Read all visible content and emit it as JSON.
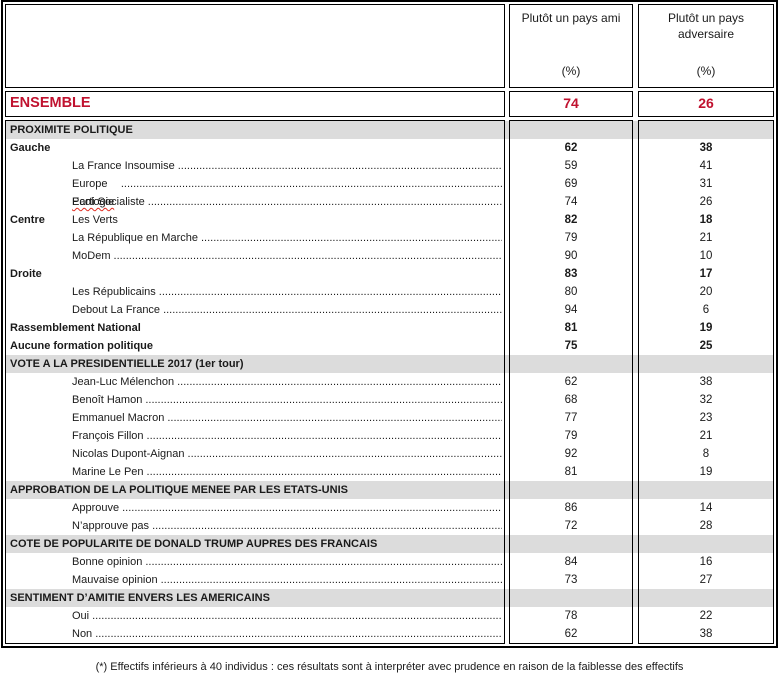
{
  "table": {
    "columns": [
      {
        "label": "Plutôt un pays ami",
        "unit": "(%)"
      },
      {
        "label": "Plutôt un pays adversaire",
        "unit": "(%)"
      }
    ],
    "ensemble": {
      "label": "ENSEMBLE",
      "ami": "74",
      "adversaire": "26"
    },
    "rows": [
      {
        "type": "section",
        "label": "PROXIMITE POLITIQUE"
      },
      {
        "type": "group",
        "label": "Gauche",
        "ami": "62",
        "adversaire": "38"
      },
      {
        "type": "item",
        "label": "La France Insoumise",
        "ami": "59",
        "adversaire": "41"
      },
      {
        "type": "item",
        "label": "Europe Ecologie Les Verts",
        "misspelled": "Ecologie",
        "ami": "69",
        "adversaire": "31"
      },
      {
        "type": "item",
        "label": "Parti Socialiste",
        "ami": "74",
        "adversaire": "26"
      },
      {
        "type": "group",
        "label": "Centre",
        "ami": "82",
        "adversaire": "18"
      },
      {
        "type": "item",
        "label": "La République en Marche",
        "ami": "79",
        "adversaire": "21"
      },
      {
        "type": "item",
        "label": "MoDem",
        "ami": "90",
        "adversaire": "10"
      },
      {
        "type": "group",
        "label": "Droite",
        "ami": "83",
        "adversaire": "17"
      },
      {
        "type": "item",
        "label": "Les Républicains",
        "ami": "80",
        "adversaire": "20"
      },
      {
        "type": "item",
        "label": "Debout La France",
        "ami": "94",
        "adversaire": "6"
      },
      {
        "type": "group",
        "label": "Rassemblement National",
        "ami": "81",
        "adversaire": "19"
      },
      {
        "type": "group",
        "label": "Aucune formation politique",
        "ami": "75",
        "adversaire": "25"
      },
      {
        "type": "section",
        "label": "VOTE A LA PRESIDENTIELLE 2017 (1er tour)"
      },
      {
        "type": "item",
        "label": "Jean-Luc Mélenchon",
        "ami": "62",
        "adversaire": "38"
      },
      {
        "type": "item",
        "label": "Benoît Hamon",
        "ami": "68",
        "adversaire": "32"
      },
      {
        "type": "item",
        "label": "Emmanuel Macron",
        "ami": "77",
        "adversaire": "23"
      },
      {
        "type": "item",
        "label": "François Fillon",
        "ami": "79",
        "adversaire": "21"
      },
      {
        "type": "item",
        "label": "Nicolas Dupont-Aignan",
        "ami": "92",
        "adversaire": "8"
      },
      {
        "type": "item",
        "label": "Marine Le Pen",
        "ami": "81",
        "adversaire": "19"
      },
      {
        "type": "section",
        "label": "APPROBATION DE LA POLITIQUE MENEE PAR LES ETATS-UNIS"
      },
      {
        "type": "item",
        "label": "Approuve",
        "ami": "86",
        "adversaire": "14"
      },
      {
        "type": "item",
        "label": "N’approuve pas",
        "ami": "72",
        "adversaire": "28"
      },
      {
        "type": "section",
        "label": "COTE DE POPULARITE DE DONALD TRUMP AUPRES DES FRANCAIS"
      },
      {
        "type": "item",
        "label": "Bonne opinion",
        "ami": "84",
        "adversaire": "16"
      },
      {
        "type": "item",
        "label": "Mauvaise opinion",
        "ami": "73",
        "adversaire": "27"
      },
      {
        "type": "section",
        "label": "SENTIMENT D’AMITIE ENVERS LES AMERICAINS"
      },
      {
        "type": "item",
        "label": "Oui",
        "ami": "78",
        "adversaire": "22"
      },
      {
        "type": "item",
        "label": "Non",
        "ami": "62",
        "adversaire": "38"
      }
    ]
  },
  "footnote": "(*) Effectifs inférieurs à 40 individus : ces résultats sont à interpréter avec prudence en raison de la faiblesse des effectifs",
  "colors": {
    "accent_red": "#C0122F",
    "band_gray": "#DCDCDC",
    "border": "#000000"
  }
}
